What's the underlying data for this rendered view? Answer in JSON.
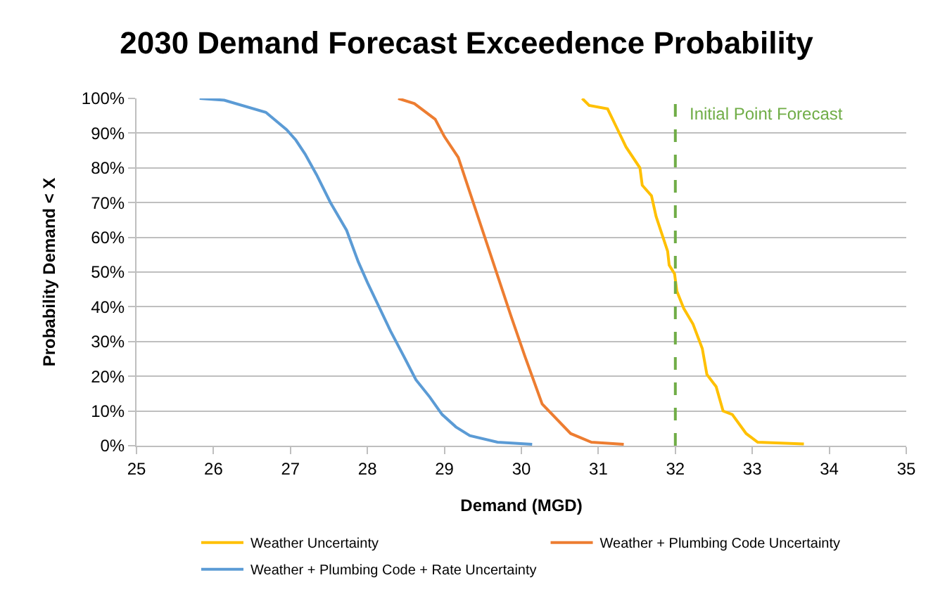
{
  "chart_data": {
    "type": "line",
    "title": "2030 Demand Forecast Exceedence Probability",
    "xlabel": "Demand (MGD)",
    "ylabel": "Probability Demand < X",
    "xlim": [
      25,
      35
    ],
    "xticks": [
      25,
      26,
      27,
      28,
      29,
      30,
      31,
      32,
      33,
      34,
      35
    ],
    "ylim": [
      0,
      100
    ],
    "yticks": [
      {
        "value": 0,
        "label": "0%"
      },
      {
        "value": 10,
        "label": "10%"
      },
      {
        "value": 20,
        "label": "20%"
      },
      {
        "value": 30,
        "label": "30%"
      },
      {
        "value": 40,
        "label": "40%"
      },
      {
        "value": 50,
        "label": "50%"
      },
      {
        "value": 60,
        "label": "60%"
      },
      {
        "value": 70,
        "label": "70%"
      },
      {
        "value": 80,
        "label": "80%"
      },
      {
        "value": 90,
        "label": "90%"
      },
      {
        "value": 100,
        "label": "100%"
      }
    ],
    "grid": "y",
    "legend": "bottom",
    "marker": "none",
    "line_style": "solid",
    "series": [
      {
        "name": "Weather Uncertainty",
        "color": "#ffc000",
        "x": [
          30.79,
          30.88,
          31.12,
          31.24,
          31.36,
          31.54,
          31.57,
          31.69,
          31.75,
          31.84,
          31.9,
          31.92,
          31.99,
          32.02,
          32.11,
          32.23,
          32.35,
          32.41,
          32.53,
          32.62,
          32.74,
          32.92,
          33.07,
          33.67
        ],
        "values": [
          100,
          98,
          97,
          91.5,
          86,
          80,
          75,
          72,
          66,
          60,
          56,
          52,
          49.5,
          44.5,
          39.5,
          35,
          28,
          20.5,
          17,
          10,
          9,
          3.5,
          1,
          0.5
        ]
      },
      {
        "name": "Weather + Plumbing Code Uncertainty",
        "color": "#ed7d31",
        "x": [
          28.4,
          28.61,
          28.88,
          29.0,
          29.18,
          29.33,
          29.51,
          29.69,
          29.87,
          30.05,
          30.27,
          30.64,
          30.91,
          31.33
        ],
        "values": [
          100,
          98.5,
          94,
          89,
          83,
          73,
          61,
          49,
          37,
          25.5,
          12,
          3.5,
          1,
          0.4
        ]
      },
      {
        "name": "Weather + Plumbing Code + Rate Uncertainty",
        "color": "#5b9bd5",
        "x": [
          25.82,
          26.14,
          26.68,
          26.95,
          27.07,
          27.19,
          27.34,
          27.52,
          27.73,
          27.88,
          28.0,
          28.15,
          28.3,
          28.49,
          28.63,
          28.81,
          28.97,
          29.15,
          29.33,
          29.69,
          30.14
        ],
        "values": [
          100,
          99.5,
          96,
          91,
          88,
          84,
          78,
          70,
          62,
          53,
          47,
          40,
          33,
          25,
          19,
          14,
          9,
          5.4,
          2.9,
          1,
          0.4
        ]
      }
    ],
    "ref_lines": [
      {
        "axis": "x",
        "value": 32,
        "label": "Initial Point Forecast",
        "color": "#70ad47",
        "line_style": "dashed"
      }
    ]
  }
}
